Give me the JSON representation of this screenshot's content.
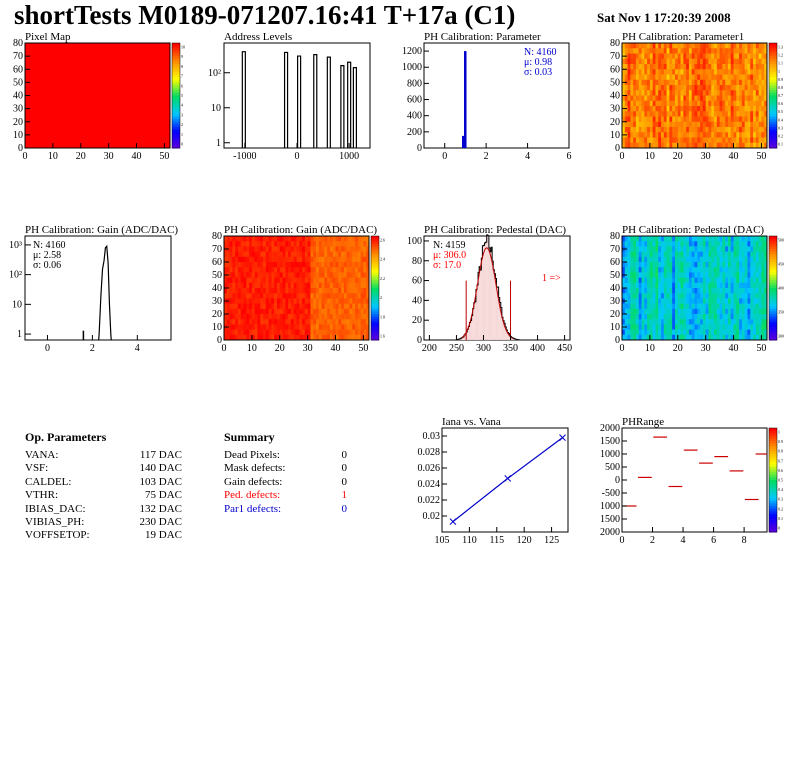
{
  "header": {
    "title": "shortTests M0189-071207.16:41 T+17a (C1)",
    "date": "Sat Nov  1 17:20:39 2008"
  },
  "chart_data": [
    {
      "id": "pixel-map",
      "type": "heatmap",
      "title": "Pixel Map",
      "xlim": [
        0,
        52
      ],
      "ylim": [
        0,
        80
      ],
      "xticks": [
        "0",
        "10",
        "20",
        "30",
        "40",
        "50"
      ],
      "yticks": [
        "0",
        "10",
        "20",
        "30",
        "40",
        "50",
        "60",
        "70",
        "80"
      ],
      "fill": "#ff0000",
      "zticks": [
        "10",
        "9",
        "8",
        "7",
        "6",
        "5",
        "4",
        "3",
        "2",
        "1",
        "0"
      ]
    },
    {
      "id": "address-levels",
      "type": "bar",
      "title": "Address Levels",
      "xlim": [
        -1400,
        1400
      ],
      "yscale": "log",
      "xticks": [
        "-1000",
        "0",
        "1000"
      ],
      "peaks_x": [
        -1010,
        -200,
        50,
        360,
        620,
        880,
        1010,
        1120
      ],
      "peaks_y": [
        400,
        380,
        300,
        330,
        280,
        160,
        200,
        140
      ]
    },
    {
      "id": "ph-parameter",
      "type": "bar",
      "title": "PH Calibration: Parameter",
      "xlim": [
        -1,
        6
      ],
      "ylim": [
        0,
        1300
      ],
      "xticks": [
        "0",
        "2",
        "4",
        "6"
      ],
      "yticks": [
        "0",
        "200",
        "400",
        "600",
        "800",
        "1000",
        "1200"
      ],
      "peak_x": 0.98,
      "peak_y": 1200,
      "stats": [
        "N: 4160",
        "μ: 0.98",
        "σ: 0.03"
      ]
    },
    {
      "id": "ph-parameter1",
      "type": "heatmap",
      "title": "PH Calibration: Parameter1",
      "xlim": [
        0,
        52
      ],
      "ylim": [
        0,
        80
      ],
      "xticks": [
        "0",
        "10",
        "20",
        "30",
        "40",
        "50"
      ],
      "yticks": [
        "0",
        "10",
        "20",
        "30",
        "40",
        "50",
        "60",
        "70",
        "80"
      ],
      "zticks": [
        "1.3",
        "1.2",
        "1.1",
        "1",
        "0.9",
        "0.8",
        "0.7",
        "0.6",
        "0.5",
        "0.4",
        "0.3",
        "0.2",
        "0.1"
      ]
    },
    {
      "id": "ph-gain",
      "type": "line",
      "title": "PH Calibration: Gain (ADC/DAC)",
      "xlim": [
        -1,
        5.5
      ],
      "yscale": "log",
      "xticks": [
        "0",
        "2",
        "4"
      ],
      "stats": [
        "N: 4160",
        "μ: 2.58",
        "σ: 0.06"
      ]
    },
    {
      "id": "ph-gain-map",
      "type": "heatmap",
      "title": "PH Calibration: Gain (ADC/DAC)",
      "xlim": [
        0,
        52
      ],
      "ylim": [
        0,
        80
      ],
      "xticks": [
        "0",
        "10",
        "20",
        "30",
        "40",
        "50"
      ],
      "yticks": [
        "0",
        "10",
        "20",
        "30",
        "40",
        "50",
        "60",
        "70",
        "80"
      ],
      "zticks": [
        "2.6",
        "2.4",
        "2.2",
        "2",
        "1.8",
        "1.6"
      ]
    },
    {
      "id": "ph-pedestal",
      "type": "bar",
      "title": "PH Calibration: Pedestal (DAC)",
      "xlim": [
        190,
        460
      ],
      "ylim": [
        0,
        105
      ],
      "xticks": [
        "200",
        "250",
        "300",
        "350",
        "400",
        "450"
      ],
      "yticks": [
        "0",
        "20",
        "40",
        "60",
        "80",
        "100"
      ],
      "mean": 306.0,
      "sigma": 17.0,
      "peak_y": 98,
      "stats": [
        "N: 4159",
        "μ: 306.0",
        "σ: 17.0"
      ],
      "annotation": "1 =>"
    },
    {
      "id": "ph-pedestal-map",
      "type": "heatmap",
      "title": "PH Calibration: Pedestal (DAC)",
      "xlim": [
        0,
        52
      ],
      "ylim": [
        0,
        80
      ],
      "xticks": [
        "0",
        "10",
        "20",
        "30",
        "40",
        "50"
      ],
      "yticks": [
        "0",
        "10",
        "20",
        "30",
        "40",
        "50",
        "60",
        "70",
        "80"
      ],
      "zticks": [
        "500",
        "450",
        "400",
        "350",
        "300"
      ]
    },
    {
      "id": "iana-vana",
      "type": "line",
      "title": "Iana vs. Vana",
      "xlim": [
        105,
        128
      ],
      "ylim": [
        0.018,
        0.031
      ],
      "xticks": [
        "105",
        "110",
        "115",
        "120",
        "125"
      ],
      "yticks": [
        "0.02",
        "0.022",
        "0.024",
        "0.026",
        "0.028",
        "0.03"
      ],
      "x": [
        107,
        117,
        127
      ],
      "y": [
        0.0193,
        0.0247,
        0.0298
      ]
    },
    {
      "id": "ph-range",
      "type": "scatter",
      "title": "PHRange",
      "xlim": [
        0,
        9.5
      ],
      "ylim": [
        -2000,
        2000
      ],
      "xticks": [
        "0",
        "2",
        "4",
        "6",
        "8"
      ],
      "yticks": [
        "2000",
        "1500",
        "1000",
        "500",
        "0",
        "-500",
        "1000",
        "1500",
        "2000"
      ],
      "segments_x": [
        0.5,
        1.5,
        2.5,
        3.5,
        4.5,
        5.5,
        6.5,
        7.5,
        8.5,
        9.2
      ],
      "segments_y": [
        -1000,
        100,
        1650,
        -250,
        1150,
        650,
        900,
        350,
        -750,
        1000
      ],
      "zticks": [
        "1",
        "0.9",
        "0.8",
        "0.7",
        "0.6",
        "0.5",
        "0.4",
        "0.3",
        "0.2",
        "0.1",
        "0"
      ]
    }
  ],
  "op_params": {
    "heading": "Op. Parameters",
    "rows": [
      {
        "name": "VANA:",
        "value": "117 DAC"
      },
      {
        "name": "VSF:",
        "value": "140 DAC"
      },
      {
        "name": "CALDEL:",
        "value": "103 DAC"
      },
      {
        "name": "VTHR:",
        "value": "75 DAC"
      },
      {
        "name": "IBIAS_DAC:",
        "value": "132 DAC"
      },
      {
        "name": "VIBIAS_PH:",
        "value": "230 DAC"
      },
      {
        "name": "VOFFSETOP:",
        "value": "19 DAC"
      }
    ]
  },
  "summary": {
    "heading": "Summary",
    "rows": [
      {
        "name": "Dead Pixels:",
        "value": "0",
        "color": "#000000"
      },
      {
        "name": "Mask defects:",
        "value": "0",
        "color": "#000000"
      },
      {
        "name": "Gain defects:",
        "value": "0",
        "color": "#000000"
      },
      {
        "name": "Ped. defects:",
        "value": "1",
        "color": "#ff0000"
      },
      {
        "name": "Par1 defects:",
        "value": "0",
        "color": "#0000cc"
      }
    ]
  }
}
